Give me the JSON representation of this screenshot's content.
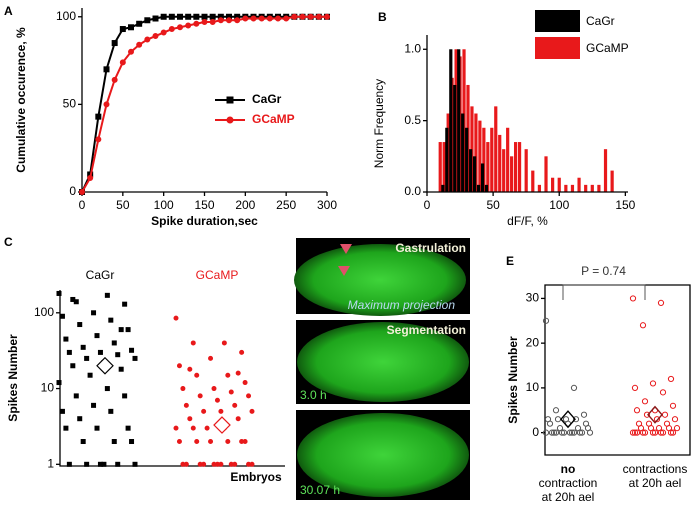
{
  "chart_data": [
    {
      "type": "line",
      "panel": "A",
      "xlabel": "Spike duration,sec",
      "ylabel": "Cumulative occurence, %",
      "x": [
        0,
        10,
        20,
        30,
        40,
        50,
        60,
        70,
        80,
        90,
        100,
        110,
        120,
        130,
        140,
        150,
        160,
        170,
        180,
        190,
        200,
        210,
        220,
        230,
        240,
        250,
        260,
        270,
        280,
        290,
        300
      ],
      "series": [
        {
          "name": "CaGr",
          "color": "#000000",
          "marker": "square",
          "values": [
            0,
            10,
            43,
            70,
            85,
            93,
            94,
            96,
            98,
            99,
            100,
            100,
            100,
            100,
            100,
            100,
            100,
            100,
            100,
            100,
            100,
            100,
            100,
            100,
            100,
            100,
            100,
            100,
            100,
            100,
            100
          ]
        },
        {
          "name": "GCaMP",
          "color": "#e8191b",
          "marker": "circle",
          "values": [
            0,
            8,
            30,
            50,
            64,
            74,
            80,
            84,
            87,
            89,
            91,
            93,
            94,
            95,
            96,
            97,
            97,
            98,
            98,
            98,
            99,
            99,
            99,
            99,
            99,
            99,
            100,
            100,
            100,
            100,
            100
          ]
        }
      ],
      "xlim": [
        0,
        300
      ],
      "xticks": [
        0,
        50,
        100,
        150,
        200,
        250,
        300
      ],
      "ylim": [
        0,
        105
      ],
      "yticks": [
        0,
        50,
        100
      ]
    },
    {
      "type": "histogram",
      "panel": "B",
      "xlabel": "dF/F, %",
      "ylabel": "Norm Frequency",
      "series": [
        {
          "name": "CaGr",
          "color": "#000000",
          "x": [
            12,
            15,
            18,
            21,
            24,
            27,
            30,
            33,
            36,
            39,
            42,
            45
          ],
          "values": [
            0.05,
            0.45,
            1.0,
            0.75,
            1.0,
            0.55,
            0.45,
            0.3,
            0.25,
            0.05,
            0.2,
            0.05
          ]
        },
        {
          "name": "GCaMP",
          "color": "#e8191b",
          "x": [
            10,
            13,
            16,
            19,
            22,
            25,
            28,
            31,
            34,
            37,
            40,
            43,
            46,
            49,
            52,
            55,
            58,
            61,
            64,
            67,
            70,
            75,
            80,
            85,
            90,
            95,
            100,
            105,
            110,
            115,
            120,
            125,
            130,
            135,
            140
          ],
          "values": [
            0.35,
            0.35,
            0.55,
            0.8,
            1.0,
            0.95,
            1.0,
            0.75,
            0.6,
            0.55,
            0.5,
            0.45,
            0.35,
            0.45,
            0.6,
            0.4,
            0.3,
            0.45,
            0.25,
            0.35,
            0.35,
            0.3,
            0.15,
            0.05,
            0.25,
            0.1,
            0.1,
            0.05,
            0.05,
            0.1,
            0.05,
            0.05,
            0.05,
            0.3,
            0.15
          ]
        }
      ],
      "xlim": [
        0,
        152
      ],
      "xticks": [
        0,
        50,
        100,
        150
      ],
      "ylim": [
        0,
        1.1
      ],
      "yticks": [
        {
          "value": 0,
          "label": "0.0"
        },
        {
          "value": 0.5,
          "label": "0.5"
        },
        {
          "value": 1,
          "label": "1.0"
        }
      ]
    },
    {
      "type": "strip",
      "panel": "C",
      "xlabel": "Embryos",
      "ylabel": "Spikes Number",
      "log_y": true,
      "series": [
        {
          "name": "CaGr",
          "color": "#000000",
          "marker": "square",
          "mean": 20,
          "values": [
            180,
            170,
            140,
            130,
            100,
            90,
            80,
            70,
            60,
            50,
            45,
            40,
            35,
            32,
            30,
            30,
            28,
            25,
            25,
            22,
            20,
            18,
            15,
            12,
            10,
            8,
            8,
            6,
            5,
            5,
            4,
            3,
            3,
            3,
            2,
            2,
            2,
            1,
            1,
            1,
            1,
            1,
            1,
            150,
            60
          ]
        },
        {
          "name": "GCaMP",
          "color": "#e8191b",
          "marker": "circle",
          "mean": 3.3,
          "values": [
            85,
            40,
            40,
            30,
            25,
            20,
            15,
            15,
            12,
            10,
            10,
            9,
            8,
            8,
            7,
            6,
            6,
            5,
            5,
            5,
            4,
            4,
            3,
            3,
            3,
            3,
            2,
            2,
            2,
            2,
            2,
            2,
            1,
            1,
            1,
            1,
            1,
            1,
            1,
            1,
            1,
            1,
            1,
            18,
            16
          ]
        }
      ],
      "ylim": [
        0.95,
        200
      ],
      "yticks": [
        1,
        10,
        100
      ]
    },
    {
      "type": "strip",
      "panel": "E",
      "ylabel": "Spikes Number",
      "annotation": "P = 0.74",
      "categories": [
        [
          "no",
          "contraction",
          "at 20h ael"
        ],
        [
          "contractions",
          "at 20h ael"
        ]
      ],
      "series": [
        {
          "color": "#555555",
          "mean": 3,
          "values": [
            25,
            10,
            5,
            4,
            3,
            3,
            3,
            3,
            2,
            2,
            2,
            1,
            1,
            1,
            0,
            0,
            0,
            0,
            0,
            0,
            0,
            0,
            0,
            0,
            0,
            0
          ]
        },
        {
          "color": "#e8191b",
          "mean": 4,
          "values": [
            30,
            29,
            24,
            12,
            11,
            10,
            9,
            7,
            6,
            5,
            5,
            4,
            4,
            3,
            3,
            2,
            2,
            2,
            1,
            1,
            1,
            1,
            1,
            0,
            0,
            0,
            0,
            0,
            0,
            0,
            0,
            0,
            0,
            0
          ]
        }
      ],
      "ylim": [
        -5,
        33
      ],
      "yticks": [
        0,
        10,
        20,
        30
      ]
    }
  ],
  "images": [
    {
      "label": "Gastrulation",
      "note": "Maximum projection"
    },
    {
      "label": "Segmentation",
      "time": "3.0 h"
    },
    {
      "time": "30.07 h"
    }
  ]
}
